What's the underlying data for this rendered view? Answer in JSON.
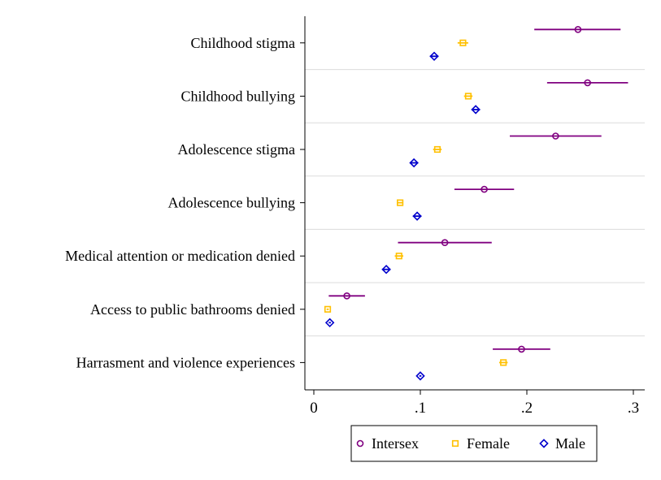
{
  "chart_data": {
    "type": "scatter",
    "subtype": "dot-plot-with-confidence-intervals",
    "categories": [
      "Childhood stigma",
      "Childhood bullying",
      "Adolescence stigma",
      "Adolescence bullying",
      "Medical attention or medication denied",
      "Access to public bathrooms denied",
      "Harrasment and violence experiences"
    ],
    "series": [
      {
        "name": "Intersex",
        "color": "#800080",
        "marker": "circle",
        "values": [
          0.248,
          0.257,
          0.227,
          0.16,
          0.123,
          0.031,
          0.195
        ],
        "ci_low": [
          0.207,
          0.219,
          0.184,
          0.132,
          0.079,
          0.014,
          0.168
        ],
        "ci_high": [
          0.288,
          0.295,
          0.27,
          0.188,
          0.167,
          0.048,
          0.222
        ]
      },
      {
        "name": "Female",
        "color": "#FFC000",
        "marker": "square",
        "values": [
          0.14,
          0.145,
          0.116,
          0.081,
          0.08,
          0.013,
          0.178
        ],
        "ci_low": [
          0.135,
          0.141,
          0.112,
          0.078,
          0.076,
          0.012,
          0.174
        ],
        "ci_high": [
          0.145,
          0.149,
          0.12,
          0.084,
          0.084,
          0.014,
          0.182
        ]
      },
      {
        "name": "Male",
        "color": "#0000CC",
        "marker": "diamond",
        "values": [
          0.113,
          0.152,
          0.094,
          0.097,
          0.068,
          0.015,
          0.1
        ],
        "ci_low": [
          0.109,
          0.148,
          0.09,
          0.093,
          0.064,
          0.014,
          0.099
        ],
        "ci_high": [
          0.117,
          0.156,
          0.098,
          0.101,
          0.072,
          0.016,
          0.101
        ]
      }
    ],
    "x_ticks": [
      0,
      0.1,
      0.2,
      0.3
    ],
    "x_tick_labels": [
      "0",
      ".1",
      ".2",
      ".3"
    ],
    "xlim": [
      -0.005,
      0.308
    ],
    "title": "",
    "xlabel": "",
    "ylabel": "",
    "grid": "horizontal separators between categories",
    "legend": {
      "position": "bottom-center",
      "items": [
        "Intersex",
        "Female",
        "Male"
      ]
    }
  }
}
